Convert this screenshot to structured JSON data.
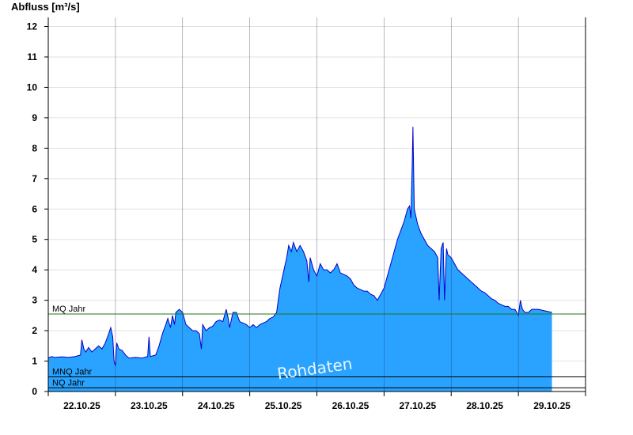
{
  "chart_data": {
    "type": "area",
    "title": "",
    "xlabel": "",
    "ylabel": "Abfluss [m³/s]",
    "ylim": [
      0,
      12.3
    ],
    "yticks": [
      0,
      1,
      2,
      3,
      4,
      5,
      6,
      7,
      8,
      9,
      10,
      11,
      12
    ],
    "x_range_days": [
      0,
      8
    ],
    "x_labels": [
      "22.10.25",
      "23.10.25",
      "24.10.25",
      "25.10.25",
      "26.10.25",
      "27.10.25",
      "28.10.25",
      "29.10.25"
    ],
    "grid": true,
    "fill_color": "#29a3ff",
    "line_color": "#0000c8",
    "series": [
      {
        "name": "",
        "points": [
          [
            0.0,
            1.1
          ],
          [
            0.05,
            1.15
          ],
          [
            0.1,
            1.12
          ],
          [
            0.2,
            1.14
          ],
          [
            0.3,
            1.12
          ],
          [
            0.4,
            1.15
          ],
          [
            0.48,
            1.2
          ],
          [
            0.5,
            1.7
          ],
          [
            0.53,
            1.4
          ],
          [
            0.56,
            1.3
          ],
          [
            0.6,
            1.45
          ],
          [
            0.65,
            1.3
          ],
          [
            0.7,
            1.4
          ],
          [
            0.75,
            1.5
          ],
          [
            0.8,
            1.4
          ],
          [
            0.85,
            1.6
          ],
          [
            0.9,
            1.9
          ],
          [
            0.93,
            2.1
          ],
          [
            0.96,
            1.8
          ],
          [
            0.98,
            1.0
          ],
          [
            1.0,
            0.85
          ],
          [
            1.02,
            1.6
          ],
          [
            1.05,
            1.4
          ],
          [
            1.1,
            1.35
          ],
          [
            1.15,
            1.2
          ],
          [
            1.2,
            1.1
          ],
          [
            1.3,
            1.12
          ],
          [
            1.4,
            1.1
          ],
          [
            1.48,
            1.15
          ],
          [
            1.5,
            1.8
          ],
          [
            1.52,
            1.15
          ],
          [
            1.6,
            1.2
          ],
          [
            1.65,
            1.5
          ],
          [
            1.7,
            1.9
          ],
          [
            1.75,
            2.2
          ],
          [
            1.78,
            2.4
          ],
          [
            1.82,
            2.1
          ],
          [
            1.85,
            2.5
          ],
          [
            1.88,
            2.2
          ],
          [
            1.9,
            2.6
          ],
          [
            1.95,
            2.7
          ],
          [
            2.0,
            2.6
          ],
          [
            2.05,
            2.2
          ],
          [
            2.1,
            2.1
          ],
          [
            2.15,
            2.0
          ],
          [
            2.2,
            2.0
          ],
          [
            2.25,
            1.9
          ],
          [
            2.28,
            1.4
          ],
          [
            2.3,
            2.2
          ],
          [
            2.35,
            2.0
          ],
          [
            2.4,
            2.1
          ],
          [
            2.45,
            2.15
          ],
          [
            2.5,
            2.3
          ],
          [
            2.55,
            2.35
          ],
          [
            2.6,
            2.3
          ],
          [
            2.65,
            2.7
          ],
          [
            2.68,
            2.4
          ],
          [
            2.7,
            2.1
          ],
          [
            2.75,
            2.6
          ],
          [
            2.8,
            2.6
          ],
          [
            2.85,
            2.3
          ],
          [
            2.9,
            2.25
          ],
          [
            2.95,
            2.2
          ],
          [
            3.0,
            2.1
          ],
          [
            3.05,
            2.2
          ],
          [
            3.1,
            2.1
          ],
          [
            3.15,
            2.2
          ],
          [
            3.2,
            2.25
          ],
          [
            3.25,
            2.3
          ],
          [
            3.3,
            2.4
          ],
          [
            3.35,
            2.45
          ],
          [
            3.4,
            2.6
          ],
          [
            3.45,
            3.4
          ],
          [
            3.5,
            3.9
          ],
          [
            3.55,
            4.4
          ],
          [
            3.58,
            4.8
          ],
          [
            3.62,
            4.6
          ],
          [
            3.65,
            4.9
          ],
          [
            3.7,
            4.6
          ],
          [
            3.75,
            4.8
          ],
          [
            3.8,
            4.6
          ],
          [
            3.85,
            4.3
          ],
          [
            3.88,
            3.6
          ],
          [
            3.9,
            4.4
          ],
          [
            3.95,
            4.0
          ],
          [
            4.0,
            3.8
          ],
          [
            4.05,
            4.2
          ],
          [
            4.1,
            4.0
          ],
          [
            4.15,
            4.0
          ],
          [
            4.2,
            3.9
          ],
          [
            4.25,
            4.0
          ],
          [
            4.3,
            4.2
          ],
          [
            4.35,
            3.9
          ],
          [
            4.4,
            3.85
          ],
          [
            4.45,
            3.8
          ],
          [
            4.5,
            3.7
          ],
          [
            4.55,
            3.5
          ],
          [
            4.6,
            3.4
          ],
          [
            4.65,
            3.35
          ],
          [
            4.7,
            3.3
          ],
          [
            4.75,
            3.3
          ],
          [
            4.8,
            3.2
          ],
          [
            4.85,
            3.15
          ],
          [
            4.9,
            3.0
          ],
          [
            4.95,
            3.2
          ],
          [
            5.0,
            3.4
          ],
          [
            5.05,
            3.8
          ],
          [
            5.1,
            4.2
          ],
          [
            5.15,
            4.6
          ],
          [
            5.2,
            5.0
          ],
          [
            5.25,
            5.3
          ],
          [
            5.3,
            5.6
          ],
          [
            5.35,
            6.0
          ],
          [
            5.38,
            6.1
          ],
          [
            5.4,
            5.7
          ],
          [
            5.42,
            7.5
          ],
          [
            5.43,
            8.7
          ],
          [
            5.45,
            6.0
          ],
          [
            5.5,
            5.5
          ],
          [
            5.55,
            5.2
          ],
          [
            5.6,
            5.0
          ],
          [
            5.65,
            4.8
          ],
          [
            5.7,
            4.7
          ],
          [
            5.75,
            4.6
          ],
          [
            5.8,
            4.4
          ],
          [
            5.82,
            3.0
          ],
          [
            5.85,
            4.7
          ],
          [
            5.88,
            4.9
          ],
          [
            5.9,
            3.0
          ],
          [
            5.93,
            4.7
          ],
          [
            5.95,
            4.5
          ],
          [
            6.0,
            4.4
          ],
          [
            6.05,
            4.2
          ],
          [
            6.1,
            4.0
          ],
          [
            6.15,
            3.9
          ],
          [
            6.2,
            3.8
          ],
          [
            6.25,
            3.7
          ],
          [
            6.3,
            3.6
          ],
          [
            6.35,
            3.5
          ],
          [
            6.4,
            3.4
          ],
          [
            6.45,
            3.3
          ],
          [
            6.5,
            3.25
          ],
          [
            6.55,
            3.15
          ],
          [
            6.6,
            3.05
          ],
          [
            6.65,
            3.0
          ],
          [
            6.7,
            2.9
          ],
          [
            6.75,
            2.85
          ],
          [
            6.8,
            2.8
          ],
          [
            6.85,
            2.8
          ],
          [
            6.9,
            2.7
          ],
          [
            6.95,
            2.7
          ],
          [
            7.0,
            2.5
          ],
          [
            7.03,
            3.0
          ],
          [
            7.06,
            2.7
          ],
          [
            7.1,
            2.6
          ],
          [
            7.15,
            2.6
          ],
          [
            7.2,
            2.7
          ],
          [
            7.3,
            2.7
          ],
          [
            7.4,
            2.65
          ],
          [
            7.5,
            2.6
          ]
        ]
      }
    ],
    "reference_lines": [
      {
        "label": "MQ Jahr",
        "value": 2.55,
        "color": "#1a7a1a"
      },
      {
        "label": "MNQ Jahr",
        "value": 0.48,
        "color": "#000000"
      },
      {
        "label": "NQ Jahr",
        "value": 0.12,
        "color": "#000000"
      }
    ],
    "watermark": "Rohdaten"
  }
}
